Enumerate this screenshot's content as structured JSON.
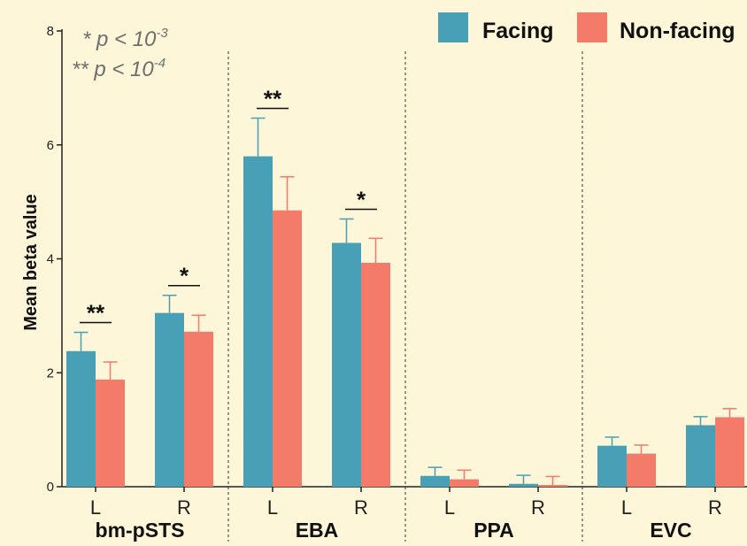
{
  "colors": {
    "background": "#fef6d8",
    "Facing": "#48a0b6",
    "Non-facing": "#f47a6a",
    "text": "#111111",
    "note": "#6e6e6e"
  },
  "legend": {
    "placement": "top-right",
    "items": [
      "Facing",
      "Non-facing"
    ]
  },
  "notes": [
    {
      "stars": "*",
      "prefix": "p < 10",
      "exponent": "-3"
    },
    {
      "stars": "**",
      "prefix": "p < 10",
      "exponent": "-4"
    }
  ],
  "chart_data": {
    "type": "bar",
    "ylabel": "Mean beta value",
    "ylim": [
      0,
      8
    ],
    "yticks": [
      0,
      2,
      4,
      6,
      8
    ],
    "grid": false,
    "groups": [
      "bm-pSTS",
      "EBA",
      "PPA",
      "EVC"
    ],
    "categories": [
      "L",
      "R",
      "L",
      "R",
      "L",
      "R",
      "L",
      "R"
    ],
    "series": [
      {
        "name": "Facing",
        "values": [
          2.38,
          3.05,
          5.8,
          4.28,
          0.19,
          0.05,
          0.72,
          1.08
        ],
        "errors": [
          0.33,
          0.31,
          0.67,
          0.42,
          0.15,
          0.15,
          0.15,
          0.15
        ]
      },
      {
        "name": "Non-facing",
        "values": [
          1.88,
          2.72,
          4.85,
          3.93,
          0.13,
          0.03,
          0.58,
          1.22
        ],
        "errors": [
          0.31,
          0.29,
          0.59,
          0.43,
          0.16,
          0.15,
          0.15,
          0.15
        ]
      }
    ],
    "significance": [
      "**",
      "*",
      "**",
      "*",
      "",
      "",
      "",
      ""
    ]
  }
}
